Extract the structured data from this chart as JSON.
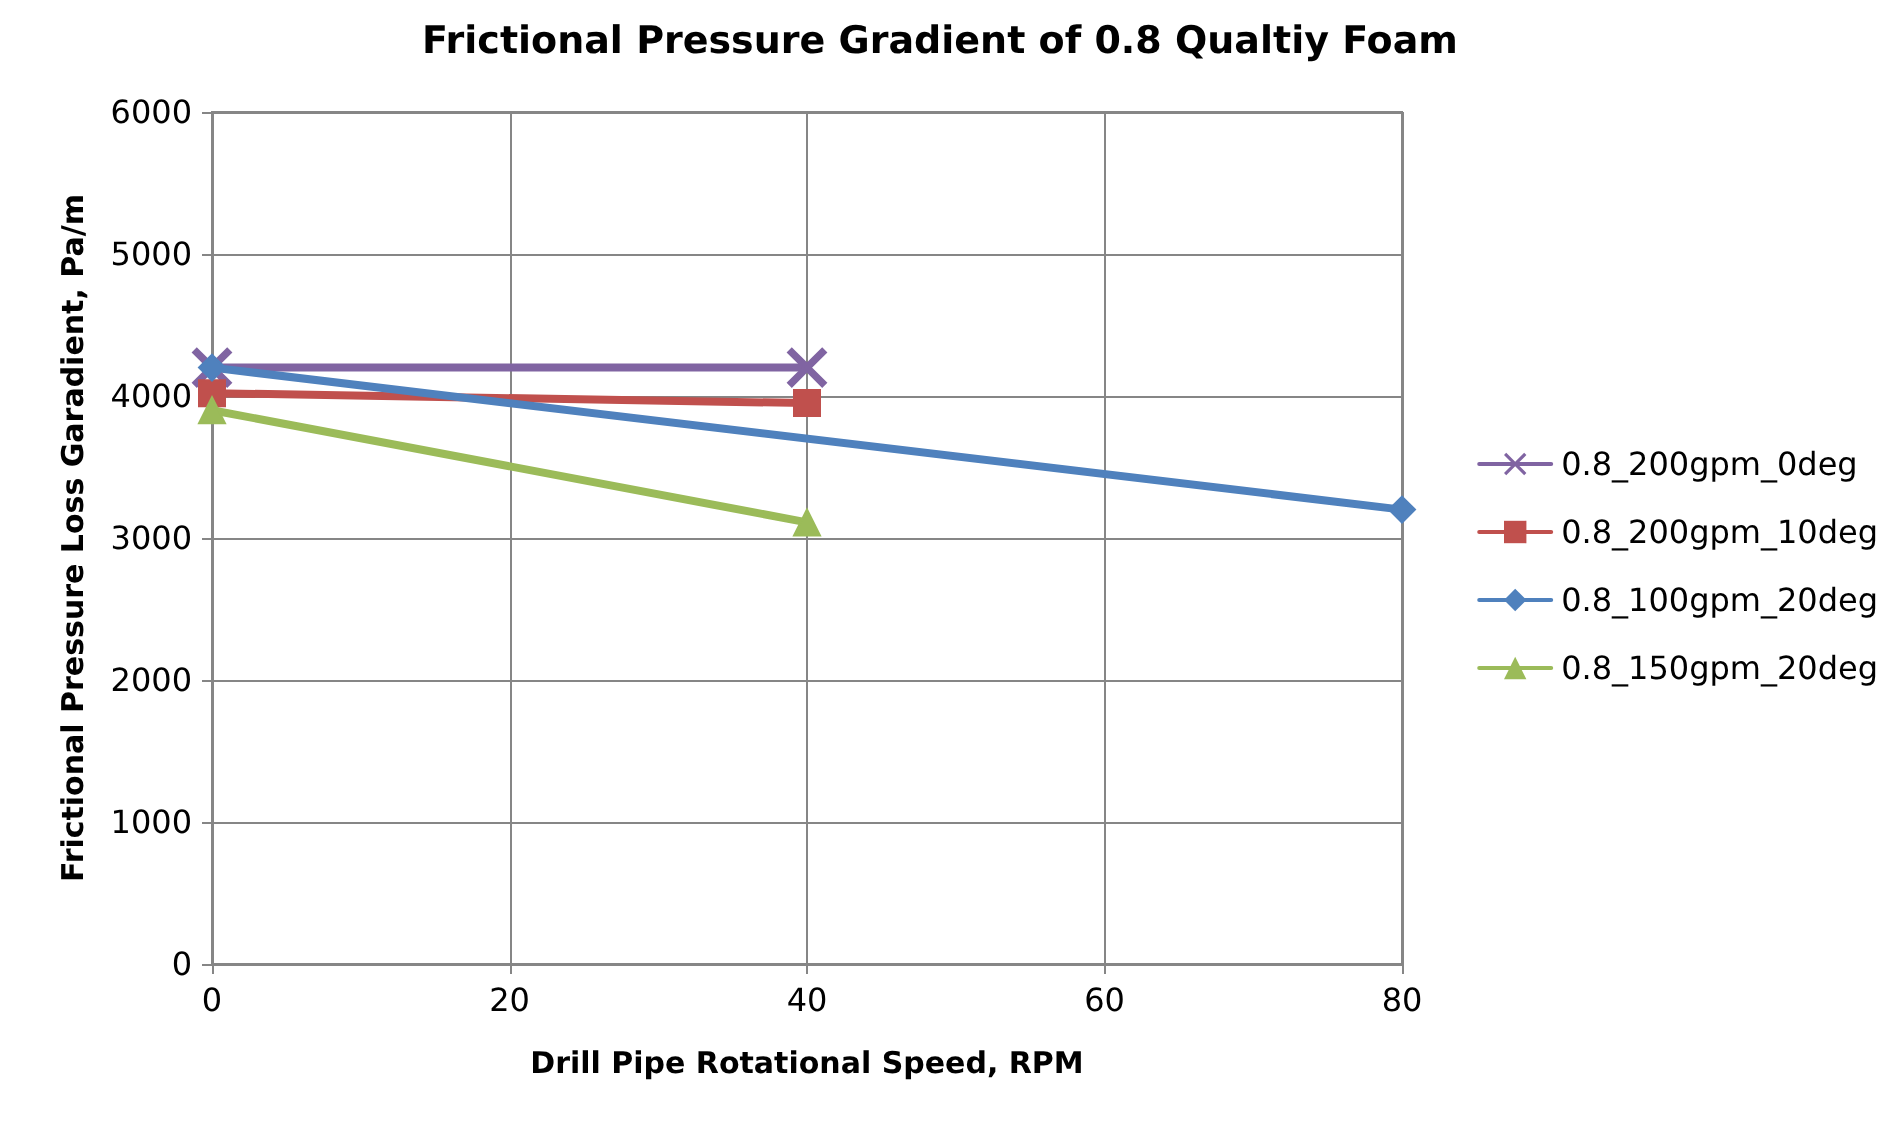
{
  "chart_data": {
    "type": "line",
    "title": "Frictional Pressure Gradient of 0.8 Qualtiy Foam",
    "xlabel": "Drill Pipe Rotational Speed, RPM",
    "ylabel": "Frictional Pressure Loss Garadient, Pa/m",
    "xlim": [
      0,
      80
    ],
    "xticks": [
      0,
      20,
      40,
      60,
      80
    ],
    "ylim": [
      0,
      6000
    ],
    "yticks": [
      0,
      1000,
      2000,
      3000,
      4000,
      5000,
      6000
    ],
    "grid": true,
    "legend": "right",
    "series": [
      {
        "name": "0.8_200gpm_0deg",
        "color": "#8064a2",
        "marker": "cross",
        "x": [
          0,
          40
        ],
        "values": [
          4200,
          4200
        ]
      },
      {
        "name": "0.8_200gpm_10deg",
        "color": "#c0504d",
        "marker": "square",
        "x": [
          0,
          40
        ],
        "values": [
          4020,
          3950
        ]
      },
      {
        "name": "0.8_100gpm_20deg",
        "color": "#4f81bd",
        "marker": "diamond",
        "x": [
          0,
          80
        ],
        "values": [
          4200,
          3200
        ]
      },
      {
        "name": "0.8_150gpm_20deg",
        "color": "#9bbb59",
        "marker": "triangle",
        "x": [
          0,
          40
        ],
        "values": [
          3900,
          3110
        ]
      }
    ]
  }
}
